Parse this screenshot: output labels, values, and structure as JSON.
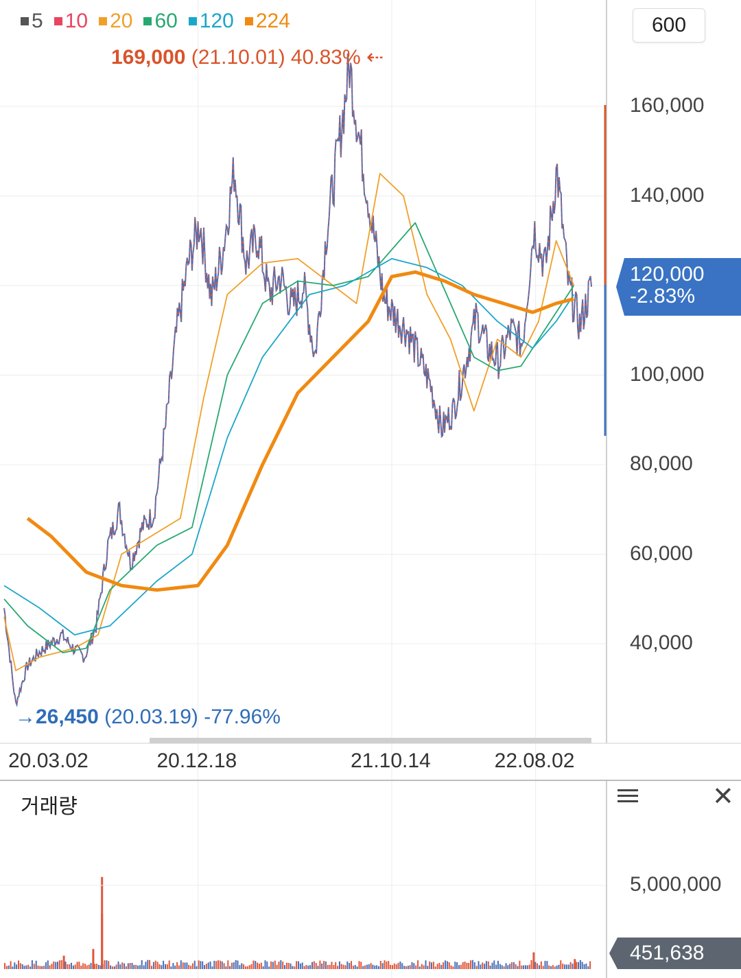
{
  "legend": [
    {
      "label": "5",
      "color": "#555555"
    },
    {
      "label": "10",
      "color": "#e8455f"
    },
    {
      "label": "20",
      "color": "#f0a028"
    },
    {
      "label": "60",
      "color": "#27a870"
    },
    {
      "label": "120",
      "color": "#1aa6c8"
    },
    {
      "label": "224",
      "color": "#f08a12"
    }
  ],
  "period_button": "600",
  "high_marker": {
    "value": "169,000",
    "date": "(21.10.01)",
    "pct": "40.83%",
    "arrow": "⇠",
    "color": "#d9542b"
  },
  "low_marker": {
    "value": "26,450",
    "date": "(20.03.19)",
    "pct": "-77.96%",
    "arrow": "→",
    "color": "#2f6db8"
  },
  "current_price": {
    "price": "120,000",
    "change": "-2.83%",
    "color": "#3a73c4"
  },
  "volume_panel": {
    "title": "거래량",
    "tick": "5,000,000",
    "current": "451,638"
  },
  "chart_data": {
    "type": "line",
    "subtype": "candlestick-with-moving-averages",
    "ylim": [
      20000,
      180000
    ],
    "y_ticks": [
      "40,000",
      "60,000",
      "80,000",
      "100,000",
      "120,000",
      "140,000",
      "160,000"
    ],
    "x_ticks": [
      "20.03.02",
      "20.12.18",
      "21.10.14",
      "22.08.02"
    ],
    "price_series": {
      "name": "price",
      "points": [
        [
          "20.03.02",
          48000
        ],
        [
          "20.03.19",
          26450
        ],
        [
          "20.04",
          35000
        ],
        [
          "20.05",
          38000
        ],
        [
          "20.06",
          40000
        ],
        [
          "20.07",
          42000
        ],
        [
          "20.08",
          39000
        ],
        [
          "20.09",
          37000
        ],
        [
          "20.10",
          44000
        ],
        [
          "20.10b",
          62000
        ],
        [
          "20.11",
          70000
        ],
        [
          "20.11b",
          58000
        ],
        [
          "20.12",
          66000
        ],
        [
          "20.12.18",
          69000
        ],
        [
          "21.01",
          88000
        ],
        [
          "21.01b",
          110000
        ],
        [
          "21.02",
          125000
        ],
        [
          "21.03",
          134000
        ],
        [
          "21.03b",
          117000
        ],
        [
          "21.04",
          128000
        ],
        [
          "21.05",
          146000
        ],
        [
          "21.05b",
          125000
        ],
        [
          "21.06",
          131000
        ],
        [
          "21.06b",
          118000
        ],
        [
          "21.07",
          122000
        ],
        [
          "21.07b",
          115000
        ],
        [
          "21.08",
          120000
        ],
        [
          "21.08b",
          104000
        ],
        [
          "21.09",
          132000
        ],
        [
          "21.09b",
          150000
        ],
        [
          "21.10.01",
          169000
        ],
        [
          "21.10.14",
          150000
        ],
        [
          "21.11",
          133000
        ],
        [
          "21.11b",
          117000
        ],
        [
          "21.12",
          113000
        ],
        [
          "22.01",
          110000
        ],
        [
          "22.02",
          104000
        ],
        [
          "22.03",
          98000
        ],
        [
          "22.03b",
          88000
        ],
        [
          "22.04",
          92000
        ],
        [
          "22.05",
          102000
        ],
        [
          "22.05b",
          113000
        ],
        [
          "22.06",
          106000
        ],
        [
          "22.06b",
          103000
        ],
        [
          "22.07",
          110000
        ],
        [
          "22.08.02",
          107000
        ],
        [
          "22.08b",
          133000
        ],
        [
          "22.09",
          124000
        ],
        [
          "22.09b",
          146000
        ],
        [
          "22.10",
          120000
        ],
        [
          "22.10b",
          111000
        ],
        [
          "22.11",
          120000
        ]
      ]
    },
    "moving_averages": [
      {
        "name": "20",
        "color": "#f0a028",
        "values": [
          [
            0,
            46000
          ],
          [
            0.02,
            34000
          ],
          [
            0.06,
            37000
          ],
          [
            0.12,
            39000
          ],
          [
            0.16,
            42000
          ],
          [
            0.2,
            60000
          ],
          [
            0.25,
            64000
          ],
          [
            0.3,
            68000
          ],
          [
            0.34,
            95000
          ],
          [
            0.38,
            118000
          ],
          [
            0.44,
            125000
          ],
          [
            0.5,
            126000
          ],
          [
            0.56,
            120000
          ],
          [
            0.6,
            116000
          ],
          [
            0.64,
            145000
          ],
          [
            0.68,
            140000
          ],
          [
            0.72,
            118000
          ],
          [
            0.76,
            108000
          ],
          [
            0.8,
            92000
          ],
          [
            0.84,
            108000
          ],
          [
            0.88,
            104000
          ],
          [
            0.91,
            112000
          ],
          [
            0.94,
            130000
          ],
          [
            0.97,
            120000
          ]
        ]
      },
      {
        "name": "60",
        "color": "#27a870",
        "values": [
          [
            0,
            50000
          ],
          [
            0.04,
            44000
          ],
          [
            0.1,
            38000
          ],
          [
            0.14,
            39000
          ],
          [
            0.18,
            52000
          ],
          [
            0.26,
            62000
          ],
          [
            0.32,
            66000
          ],
          [
            0.38,
            100000
          ],
          [
            0.44,
            116000
          ],
          [
            0.5,
            121000
          ],
          [
            0.56,
            120000
          ],
          [
            0.62,
            122000
          ],
          [
            0.7,
            134000
          ],
          [
            0.76,
            116000
          ],
          [
            0.8,
            104000
          ],
          [
            0.84,
            101000
          ],
          [
            0.88,
            102000
          ],
          [
            0.92,
            110000
          ],
          [
            0.97,
            120000
          ]
        ]
      },
      {
        "name": "120",
        "color": "#1aa6c8",
        "values": [
          [
            0,
            53000
          ],
          [
            0.06,
            48000
          ],
          [
            0.12,
            42000
          ],
          [
            0.18,
            44000
          ],
          [
            0.26,
            54000
          ],
          [
            0.32,
            60000
          ],
          [
            0.38,
            86000
          ],
          [
            0.44,
            104000
          ],
          [
            0.52,
            118000
          ],
          [
            0.58,
            120000
          ],
          [
            0.66,
            126000
          ],
          [
            0.72,
            124000
          ],
          [
            0.78,
            120000
          ],
          [
            0.84,
            112000
          ],
          [
            0.9,
            106000
          ],
          [
            0.94,
            112000
          ],
          [
            0.97,
            118000
          ]
        ]
      },
      {
        "name": "224",
        "color": "#f08a12",
        "values": [
          [
            0.04,
            68000
          ],
          [
            0.08,
            64000
          ],
          [
            0.14,
            56000
          ],
          [
            0.2,
            53000
          ],
          [
            0.26,
            52000
          ],
          [
            0.33,
            53000
          ],
          [
            0.38,
            62000
          ],
          [
            0.44,
            80000
          ],
          [
            0.5,
            96000
          ],
          [
            0.56,
            104000
          ],
          [
            0.62,
            112000
          ],
          [
            0.66,
            122000
          ],
          [
            0.7,
            123000
          ],
          [
            0.75,
            121000
          ],
          [
            0.8,
            118000
          ],
          [
            0.85,
            116000
          ],
          [
            0.9,
            114000
          ],
          [
            0.94,
            116000
          ],
          [
            0.97,
            117000
          ]
        ]
      }
    ],
    "volume": {
      "ylim": [
        0,
        6000000
      ],
      "spikes": [
        [
          0.165,
          5500000
        ],
        [
          0.165,
          3300000
        ],
        [
          0.15,
          1200000
        ],
        [
          0.1,
          800000
        ],
        [
          0.9,
          1000000
        ],
        [
          0.97,
          600000
        ]
      ]
    }
  }
}
